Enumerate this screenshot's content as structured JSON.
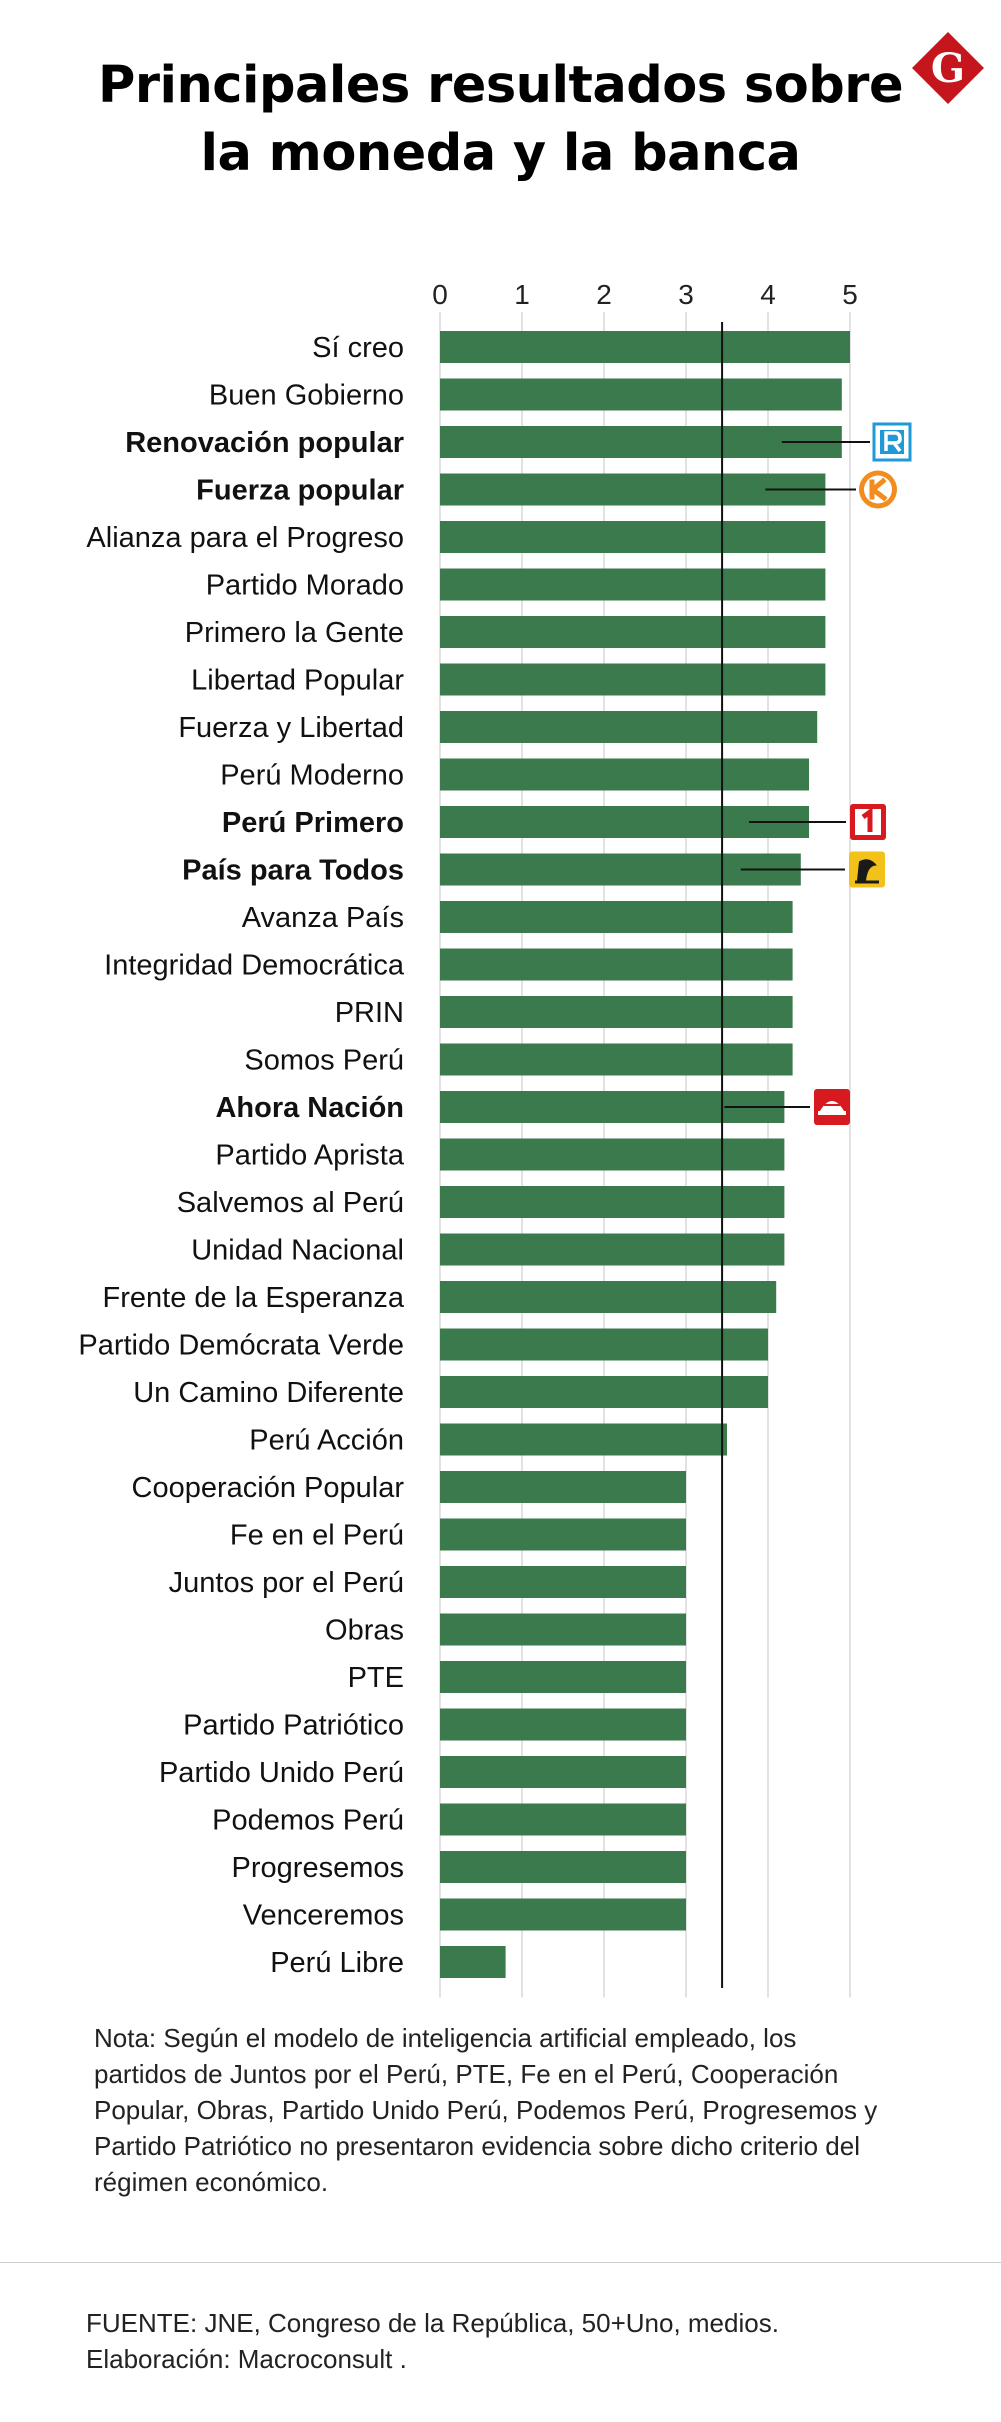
{
  "header": {
    "title_line1": "Principales resultados sobre",
    "title_line2": "la moneda y la banca",
    "brand_letter": "G"
  },
  "chart_data": {
    "type": "bar",
    "orientation": "horizontal",
    "xlim": [
      0,
      5
    ],
    "xticks": [
      "0",
      "1",
      "2",
      "3",
      "4",
      "5"
    ],
    "reference_line": 3.44,
    "bar_color": "#3a7a4c",
    "categories": [
      {
        "name": "Sí creo",
        "value": 5.0,
        "bold": false
      },
      {
        "name": "Buen Gobierno",
        "value": 4.9,
        "bold": false
      },
      {
        "name": "Renovación popular",
        "value": 4.9,
        "bold": true,
        "marker": "r-logo-icon"
      },
      {
        "name": "Fuerza popular",
        "value": 4.7,
        "bold": true,
        "marker": "k-logo-icon"
      },
      {
        "name": "Alianza para el Progreso",
        "value": 4.7,
        "bold": false
      },
      {
        "name": "Partido Morado",
        "value": 4.7,
        "bold": false
      },
      {
        "name": "Primero la Gente",
        "value": 4.7,
        "bold": false
      },
      {
        "name": "Libertad Popular",
        "value": 4.7,
        "bold": false
      },
      {
        "name": "Fuerza y Libertad",
        "value": 4.6,
        "bold": false
      },
      {
        "name": "Perú Moderno",
        "value": 4.5,
        "bold": false
      },
      {
        "name": "Perú Primero",
        "value": 4.5,
        "bold": true,
        "marker": "one-logo-icon"
      },
      {
        "name": "País para Todos",
        "value": 4.4,
        "bold": true,
        "marker": "pxt-logo-icon"
      },
      {
        "name": "Avanza País",
        "value": 4.3,
        "bold": false
      },
      {
        "name": "Integridad Democrática",
        "value": 4.3,
        "bold": false
      },
      {
        "name": "PRIN",
        "value": 4.3,
        "bold": false
      },
      {
        "name": "Somos Perú",
        "value": 4.3,
        "bold": false
      },
      {
        "name": "Ahora Nación",
        "value": 4.2,
        "bold": true,
        "marker": "hat-logo-icon"
      },
      {
        "name": "Partido Aprista",
        "value": 4.2,
        "bold": false
      },
      {
        "name": "Salvemos al Perú",
        "value": 4.2,
        "bold": false
      },
      {
        "name": "Unidad Nacional",
        "value": 4.2,
        "bold": false
      },
      {
        "name": "Frente de la Esperanza",
        "value": 4.1,
        "bold": false
      },
      {
        "name": "Partido Demócrata Verde",
        "value": 4.0,
        "bold": false
      },
      {
        "name": "Un Camino Diferente",
        "value": 4.0,
        "bold": false
      },
      {
        "name": "Perú Acción",
        "value": 3.5,
        "bold": false
      },
      {
        "name": "Cooperación Popular",
        "value": 3.0,
        "bold": false
      },
      {
        "name": "Fe en el Perú",
        "value": 3.0,
        "bold": false
      },
      {
        "name": "Juntos por el Perú",
        "value": 3.0,
        "bold": false
      },
      {
        "name": "Obras",
        "value": 3.0,
        "bold": false
      },
      {
        "name": "PTE",
        "value": 3.0,
        "bold": false
      },
      {
        "name": "Partido Patriótico",
        "value": 3.0,
        "bold": false
      },
      {
        "name": "Partido Unido Perú",
        "value": 3.0,
        "bold": false
      },
      {
        "name": "Podemos Perú",
        "value": 3.0,
        "bold": false
      },
      {
        "name": "Progresemos",
        "value": 3.0,
        "bold": false
      },
      {
        "name": "Venceremos",
        "value": 3.0,
        "bold": false
      },
      {
        "name": "Perú Libre",
        "value": 0.8,
        "bold": false
      }
    ]
  },
  "note": "Nota: Según el modelo de inteligencia artificial empleado, los partidos de Juntos por el Perú, PTE, Fe en el Perú, Cooperación Popular, Obras, Partido Unido Perú, Podemos Perú, Progresemos y Partido Patriótico no presentaron evidencia sobre dicho criterio del régimen económico.",
  "footer": {
    "source": "FUENTE: JNE, Congreso de la República, 50+Uno, medios.",
    "credit": "Elaboración: Macroconsult ."
  },
  "colors": {
    "logo_red": "#c4161c",
    "r_logo_blue": "#1f9ad6",
    "k_logo_orange": "#f28c1e",
    "one_logo_red": "#d71920",
    "pxt_logo_yellow": "#f3c21a"
  }
}
